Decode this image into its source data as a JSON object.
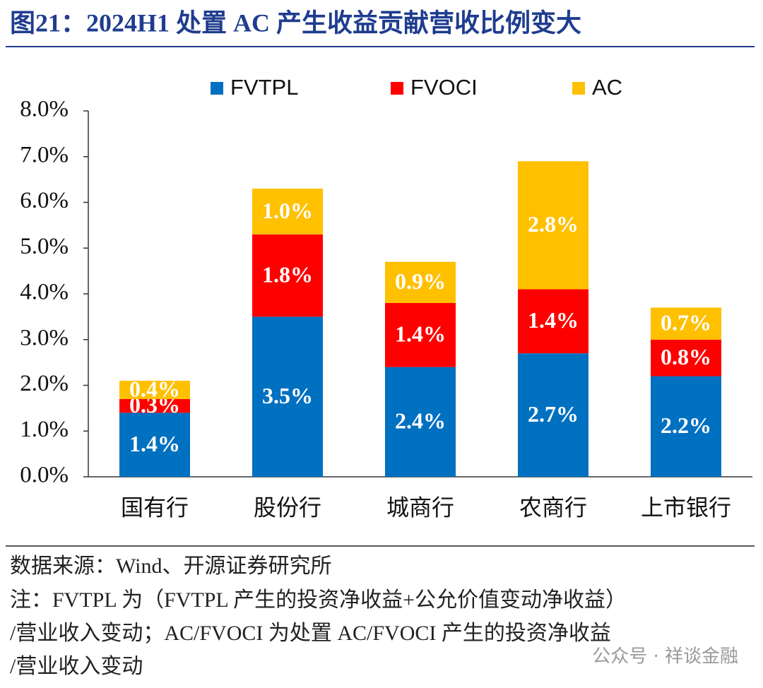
{
  "chart_data": {
    "type": "stacked_bar",
    "title": "图21：2024H1 处置 AC 产生收益贡献营收比例变大",
    "categories": [
      "国有行",
      "股份行",
      "城商行",
      "农商行",
      "上市银行"
    ],
    "series": [
      {
        "name": "FVTPL",
        "color": "#0070c0",
        "values": [
          1.4,
          3.5,
          2.4,
          2.7,
          2.2
        ],
        "value_labels": [
          "1.4%",
          "3.5%",
          "2.4%",
          "2.7%",
          "2.2%"
        ]
      },
      {
        "name": "FVOCI",
        "color": "#ff0000",
        "values": [
          0.3,
          1.8,
          1.4,
          1.4,
          0.8
        ],
        "value_labels": [
          "0.3%",
          "1.8%",
          "1.4%",
          "1.4%",
          "0.8%"
        ]
      },
      {
        "name": "AC",
        "color": "#ffc000",
        "values": [
          0.4,
          1.0,
          0.9,
          2.8,
          0.7
        ],
        "value_labels": [
          "0.4%",
          "1.0%",
          "0.9%",
          "2.8%",
          "0.7%"
        ]
      }
    ],
    "ylim": [
      0,
      8
    ],
    "yticks": [
      {
        "value": 0,
        "label": "0.0%"
      },
      {
        "value": 1,
        "label": "1.0%"
      },
      {
        "value": 2,
        "label": "2.0%"
      },
      {
        "value": 3,
        "label": "3.0%"
      },
      {
        "value": 4,
        "label": "4.0%"
      },
      {
        "value": 5,
        "label": "5.0%"
      },
      {
        "value": 6,
        "label": "6.0%"
      },
      {
        "value": 7,
        "label": "7.0%"
      },
      {
        "value": 8,
        "label": "8.0%"
      }
    ],
    "legend_position": "top",
    "source": "数据来源：Wind、开源证券研究所",
    "notes": [
      "注：FVTPL 为（FVTPL 产生的投资净收益+公允价值变动净收益）",
      "/营业收入变动；AC/FVOCI 为处置 AC/FVOCI 产生的投资净收益",
      "/营业收入变动"
    ],
    "watermark": "公众号 · 祥谈金融"
  }
}
